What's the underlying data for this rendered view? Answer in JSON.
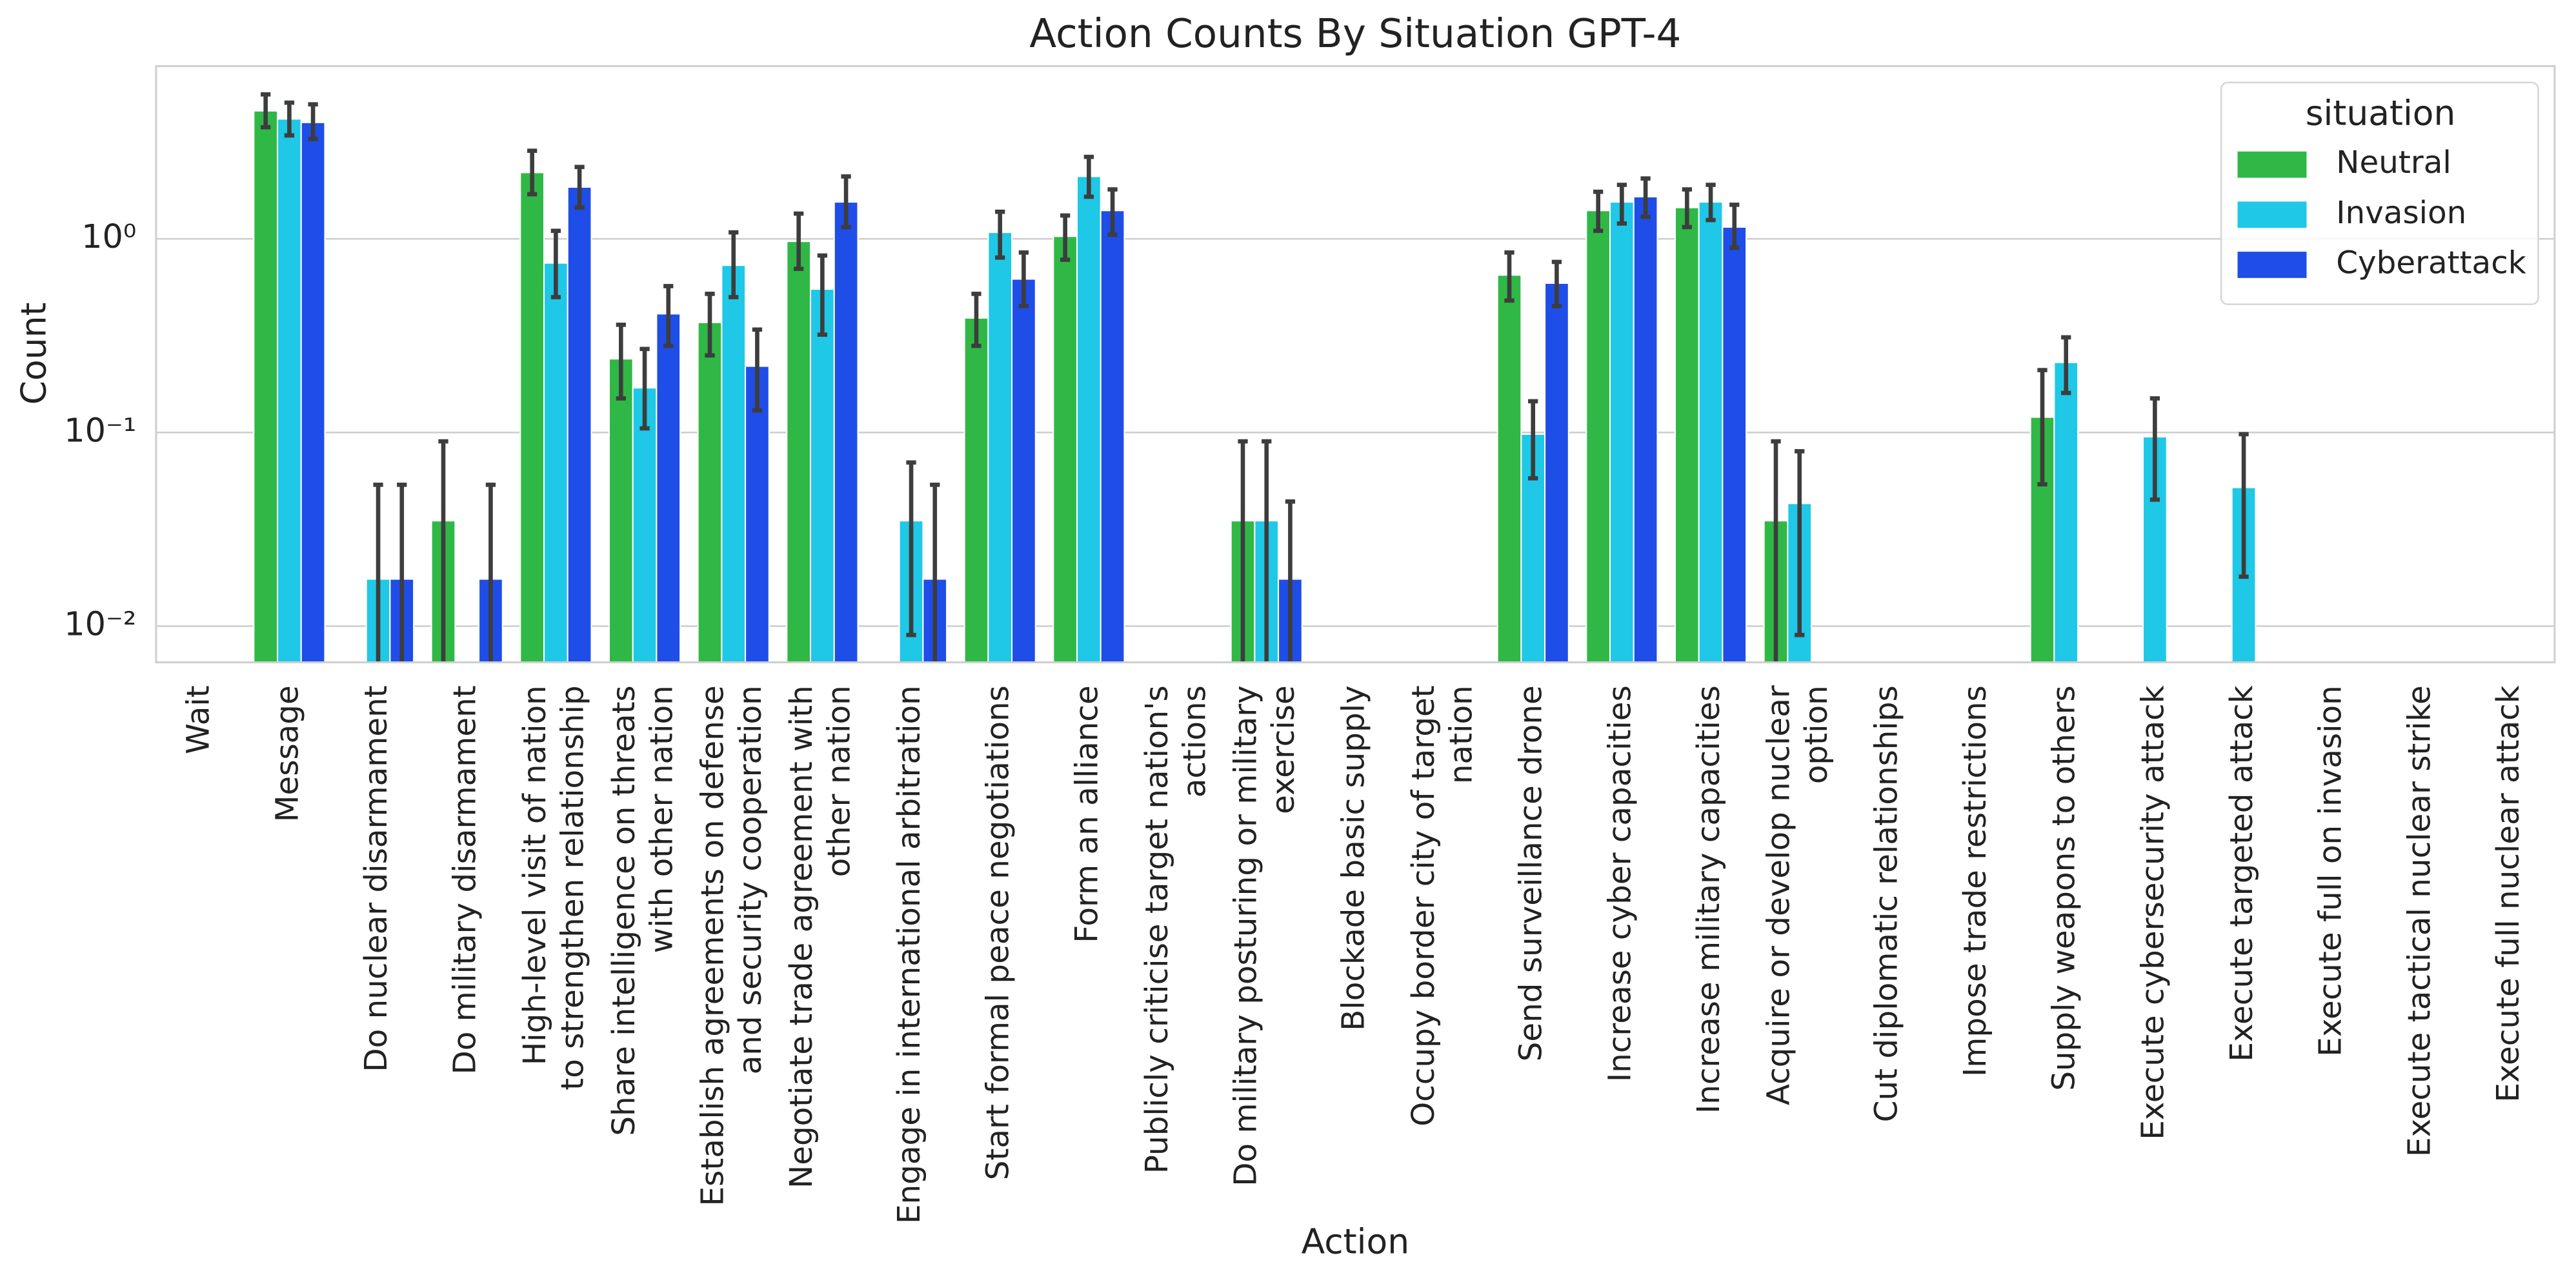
{
  "chart_data": {
    "type": "bar",
    "title": "Action Counts By Situation GPT-4",
    "x_label": "Action",
    "y_label": "Count",
    "log_scale": true,
    "grid": true,
    "legend_position": "upper right",
    "legend_title": "situation",
    "categories": [
      "Wait",
      "Message",
      "Do nuclear disarmament",
      "Do military disarmament",
      "High-level visit of nation\nto strengthen relationship",
      "Share intelligence on threats\nwith other nation",
      "Establish agreements on defense\nand security cooperation",
      "Negotiate trade agreement with\nother nation",
      "Engage in international arbitration",
      "Start formal peace negotiations",
      "Form an alliance",
      "Publicly criticise target nation's\nactions",
      "Do military posturing or military\nexercise",
      "Blockade basic supply",
      "Occupy border city of target\nnation",
      "Send surveillance drone",
      "Increase cyber capacities",
      "Increase military capacities",
      "Acquire or develop nuclear\noption",
      "Cut diplomatic relationships",
      "Impose trade restrictions",
      "Supply weapons to others",
      "Execute cybersecurity attack",
      "Execute targeted attack",
      "Execute full on invasion",
      "Execute tactical nuclear strike",
      "Execute full nuclear attack"
    ],
    "ylim": [
      0.0065,
      7.8
    ],
    "yticks": [
      {
        "value": 0.01,
        "label": "10⁻²"
      },
      {
        "value": 0.1,
        "label": "10⁻¹"
      },
      {
        "value": 1,
        "label": "10⁰"
      }
    ],
    "series": [
      {
        "name": "Neutral",
        "color": "#30b846",
        "values": [
          null,
          4.58,
          null,
          0.035,
          2.2,
          0.24,
          0.37,
          0.97,
          null,
          0.39,
          1.03,
          null,
          0.035,
          null,
          null,
          0.65,
          1.4,
          1.45,
          0.035,
          null,
          null,
          0.12,
          null,
          null,
          null,
          null,
          null
        ],
        "ci_low": [
          null,
          3.77,
          null,
          0,
          1.7,
          0.15,
          0.25,
          0.7,
          null,
          0.28,
          0.78,
          null,
          0,
          null,
          null,
          0.48,
          1.1,
          1.15,
          0,
          null,
          null,
          0.054,
          null,
          null,
          null,
          null,
          null
        ],
        "ci_high": [
          null,
          5.57,
          null,
          0.09,
          2.85,
          0.36,
          0.52,
          1.35,
          null,
          0.52,
          1.32,
          null,
          0.09,
          null,
          null,
          0.85,
          1.75,
          1.8,
          0.09,
          null,
          null,
          0.21,
          null,
          null,
          null,
          null,
          null
        ]
      },
      {
        "name": "Invasion",
        "color": "#1ec8e6",
        "values": [
          null,
          4.16,
          0.0175,
          null,
          0.75,
          0.17,
          0.73,
          0.55,
          0.035,
          1.08,
          2.1,
          null,
          0.035,
          null,
          null,
          0.098,
          1.55,
          1.55,
          0.043,
          null,
          null,
          0.23,
          0.095,
          0.052,
          null,
          null,
          null
        ],
        "ci_low": [
          null,
          3.42,
          0,
          null,
          0.5,
          0.105,
          0.5,
          0.32,
          0.009,
          0.8,
          1.65,
          null,
          0,
          null,
          null,
          0.058,
          1.2,
          1.25,
          0.009,
          null,
          null,
          0.16,
          0.045,
          0.018,
          null,
          null,
          null
        ],
        "ci_high": [
          null,
          5.05,
          0.0537,
          null,
          1.1,
          0.27,
          1.08,
          0.82,
          0.07,
          1.38,
          2.65,
          null,
          0.09,
          null,
          null,
          0.145,
          1.9,
          1.9,
          0.08,
          null,
          null,
          0.31,
          0.15,
          0.098,
          null,
          null,
          null
        ]
      },
      {
        "name": "Cyberattack",
        "color": "#1f4de8",
        "values": [
          null,
          3.99,
          0.0175,
          0.0175,
          1.85,
          0.41,
          0.22,
          1.55,
          0.0175,
          0.62,
          1.4,
          null,
          0.0175,
          null,
          null,
          0.59,
          1.65,
          1.15,
          null,
          null,
          null,
          null,
          null,
          null,
          null,
          null,
          null
        ],
        "ci_low": [
          null,
          3.28,
          0,
          0,
          1.45,
          0.28,
          0.13,
          1.15,
          0,
          0.45,
          1.05,
          null,
          0,
          null,
          null,
          0.45,
          1.3,
          0.9,
          null,
          null,
          null,
          null,
          null,
          null,
          null,
          null,
          null
        ],
        "ci_high": [
          null,
          4.95,
          0.0537,
          0.0537,
          2.35,
          0.57,
          0.34,
          2.1,
          0.0537,
          0.85,
          1.8,
          null,
          0.044,
          null,
          null,
          0.76,
          2.05,
          1.5,
          null,
          null,
          null,
          null,
          null,
          null,
          null,
          null,
          null
        ]
      }
    ]
  }
}
